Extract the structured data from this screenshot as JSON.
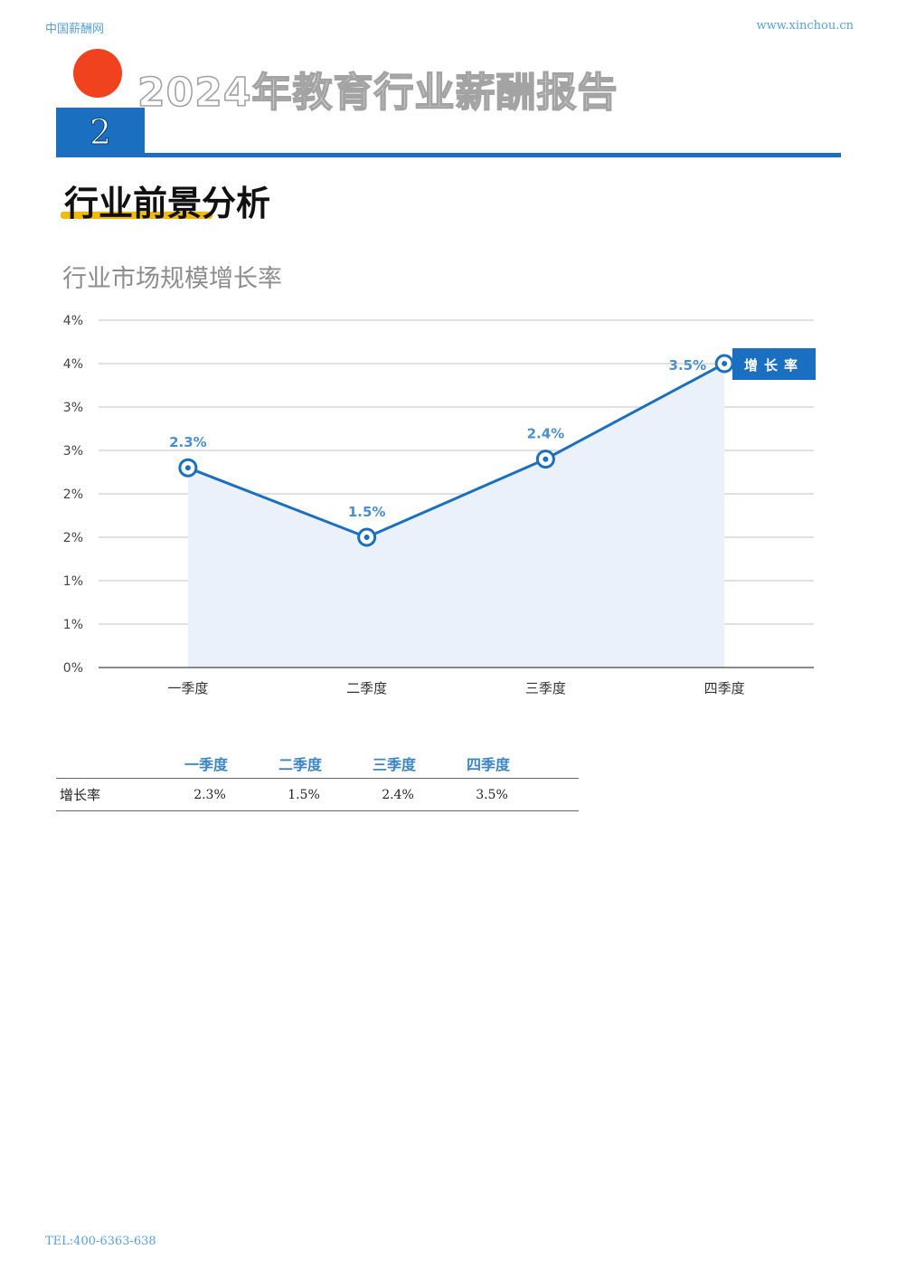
{
  "header": {
    "site_name": "中国薪酬网",
    "site_url": "www.xinchou.cn",
    "report_title": "2024年教育行业薪酬报告",
    "chapter_number": "2"
  },
  "section": {
    "title": "行业前景分析",
    "chart_title": "行业市场规模增长率"
  },
  "chart_data": {
    "type": "line",
    "title": "行业市场规模增长率",
    "categories": [
      "一季度",
      "二季度",
      "三季度",
      "四季度"
    ],
    "series": [
      {
        "name": "增长率",
        "values": [
          2.3,
          1.5,
          2.4,
          3.5
        ],
        "labels": [
          "2.3%",
          "1.5%",
          "2.4%",
          "3.5%"
        ]
      }
    ],
    "y_ticks": [
      4,
      3.5,
      3,
      2.5,
      2,
      1.5,
      1,
      0.5,
      0
    ],
    "y_tick_labels": [
      "4%",
      "4%",
      "3%",
      "3%",
      "2%",
      "2%",
      "1%",
      "1%",
      "0%"
    ],
    "ylim": [
      0,
      4
    ],
    "legend_position": "right",
    "grid": true,
    "area_fill": true
  },
  "table": {
    "headers": [
      "",
      "一季度",
      "二季度",
      "三季度",
      "四季度"
    ],
    "rows": [
      {
        "label": "增长率",
        "values": [
          "2.3%",
          "1.5%",
          "2.4%",
          "3.5%"
        ]
      }
    ]
  },
  "footer": {
    "tel": "TEL:400-6363-638"
  },
  "colors": {
    "accent": "#1a6fc0",
    "highlight": "#f2b90f",
    "dot": "#f0421f",
    "area": "#eaf1fa",
    "label": "#3f86c7"
  }
}
